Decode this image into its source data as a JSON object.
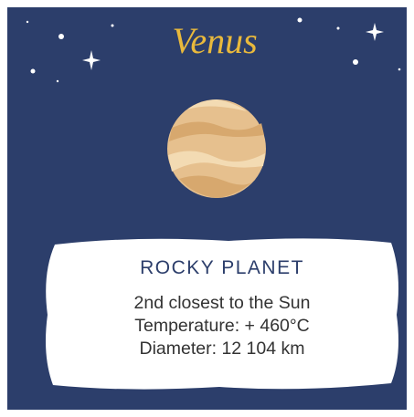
{
  "title": "Venus",
  "card": {
    "heading": "ROCKY PLANET",
    "lines": [
      "2nd closest to the Sun",
      "Temperature: + 460°C",
      "Diameter: 12 104 km"
    ]
  }
}
